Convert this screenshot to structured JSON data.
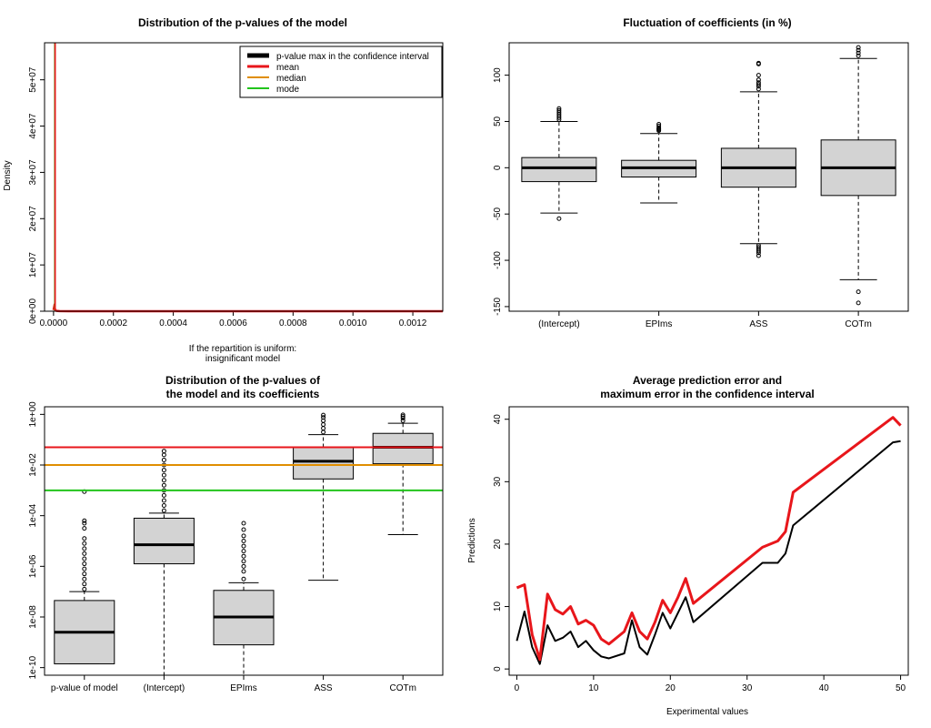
{
  "chart_data": [
    {
      "type": "density",
      "title": "Distribution of the p-values of the model",
      "xlabel": "If the repartition is uniform:",
      "xlabel2": "insignificant model",
      "ylabel": "Density",
      "xlim": [
        -3e-05,
        0.0013
      ],
      "ylim": [
        0,
        58000000
      ],
      "x_ticks": [
        0,
        0.0002,
        0.0004,
        0.0006,
        0.0008,
        0.001,
        0.0012
      ],
      "x_tick_labels": [
        "0.0000",
        "0.0002",
        "0.0004",
        "0.0006",
        "0.0008",
        "0.0010",
        "0.0012"
      ],
      "y_ticks": [
        0,
        10000000,
        20000000,
        30000000,
        40000000,
        50000000
      ],
      "y_tick_labels": [
        "0e+00",
        "1e+07",
        "2e+07",
        "3e+07",
        "4e+07",
        "5e+07"
      ],
      "density_curve": {
        "x": [
          0,
          2e-06,
          4e-06,
          6e-06,
          8e-06,
          1e-05,
          2e-05,
          5e-05,
          0.0001,
          0.0004,
          0.0008,
          0.0013
        ],
        "y": [
          250000,
          900000,
          600000,
          300000,
          150000,
          80000,
          30000,
          10000,
          5000,
          2000,
          1000,
          500
        ],
        "color": "#E8161B"
      },
      "vlines": [
        {
          "name": "p-value max in the confidence interval",
          "x": 4e-06,
          "color": "#000000"
        },
        {
          "name": "mode",
          "x": 4.5e-06,
          "color": "#22C41C"
        },
        {
          "name": "median",
          "x": 5e-06,
          "color": "#E08E00"
        },
        {
          "name": "mean",
          "x": 5.5e-06,
          "color": "#E8161B"
        }
      ],
      "legend": {
        "position": "top-right",
        "entries": [
          {
            "label": "p-value max in the confidence interval",
            "color": "#000000"
          },
          {
            "label": "mean",
            "color": "#E8161B"
          },
          {
            "label": "median",
            "color": "#E08E00"
          },
          {
            "label": "mode",
            "color": "#22C41C"
          }
        ]
      }
    },
    {
      "type": "boxplot",
      "title": "Fluctuation of coefficients (in %)",
      "categories": [
        "(Intercept)",
        "EPIms",
        "ASS",
        "COTm"
      ],
      "ylim": [
        -155,
        135
      ],
      "y_ticks": [
        -150,
        -100,
        -50,
        0,
        50,
        100
      ],
      "y_tick_labels": [
        "-150",
        "-100",
        "-50",
        "0",
        "50",
        "100"
      ],
      "boxes": [
        {
          "min": -49,
          "q1": -15,
          "median": 0,
          "q3": 11,
          "max": 50,
          "outliers": [
            -55,
            52,
            54,
            56,
            58,
            60,
            62,
            64
          ]
        },
        {
          "min": -38,
          "q1": -10,
          "median": 0,
          "q3": 8,
          "max": 37,
          "outliers": [
            40,
            41,
            42,
            43,
            45,
            47
          ]
        },
        {
          "min": -82,
          "q1": -21,
          "median": 0,
          "q3": 21,
          "max": 82,
          "outliers": [
            -95,
            -92,
            -90,
            -88,
            -86,
            -84,
            85,
            88,
            90,
            92,
            95,
            100,
            112,
            113
          ]
        },
        {
          "min": -121,
          "q1": -30,
          "median": 0,
          "q3": 30,
          "max": 118,
          "outliers": [
            -146,
            -134,
            121,
            124,
            127,
            130
          ]
        }
      ]
    },
    {
      "type": "boxplot",
      "title": "Distribution of the p-values of",
      "title2": "the model and its coefficients",
      "log_y": true,
      "categories": [
        "p-value of model",
        "(Intercept)",
        "EPIms",
        "ASS",
        "COTm"
      ],
      "ylim_log10": [
        -10.3,
        0.3
      ],
      "y_ticks_log10": [
        -10,
        -8,
        -6,
        -4,
        -2,
        0
      ],
      "y_tick_labels": [
        "1e-10",
        "1e-08",
        "1e-06",
        "1e-04",
        "1e-02",
        "1e+00"
      ],
      "boxes_log10": [
        {
          "min": -9.85,
          "q1": -9.85,
          "median": -8.6,
          "q3": -7.35,
          "max": -7.0,
          "outliers": [
            -6.9,
            -6.7,
            -6.5,
            -6.3,
            -6.1,
            -5.9,
            -5.7,
            -5.5,
            -5.3,
            -5.1,
            -4.9,
            -4.5,
            -4.3,
            -4.2,
            -3.05
          ]
        },
        {
          "min": -10.3,
          "q1": -5.9,
          "median": -5.15,
          "q3": -4.1,
          "max": -3.9,
          "outliers": [
            -3.8,
            -3.6,
            -3.4,
            -3.2,
            -3.0,
            -2.8,
            -2.6,
            -2.4,
            -2.2,
            -2.0,
            -1.8,
            -1.6,
            -1.45
          ]
        },
        {
          "min": -10.3,
          "q1": -9.1,
          "median": -8.0,
          "q3": -6.95,
          "max": -6.65,
          "outliers": [
            -6.5,
            -6.2,
            -6.0,
            -5.8,
            -5.6,
            -5.4,
            -5.2,
            -5.0,
            -4.8,
            -4.55,
            -4.3
          ]
        },
        {
          "min": -6.55,
          "q1": -2.55,
          "median": -1.85,
          "q3": -1.3,
          "max": -0.8,
          "outliers": [
            -0.7,
            -0.55,
            -0.4,
            -0.25,
            -0.12,
            -0.03
          ]
        },
        {
          "min": -4.75,
          "q1": -1.95,
          "median": -1.3,
          "q3": -0.75,
          "max": -0.35,
          "outliers": [
            -0.25,
            -0.15,
            -0.08,
            -0.02
          ]
        }
      ],
      "hlines_log10": [
        {
          "name": "mean",
          "y": -1.3,
          "color": "#E8161B"
        },
        {
          "name": "median",
          "y": -2.0,
          "color": "#E08E00"
        },
        {
          "name": "mode",
          "y": -3.0,
          "color": "#22C41C"
        }
      ]
    },
    {
      "type": "line",
      "title": "Average prediction error and",
      "title2": "maximum error in the confidence interval",
      "xlabel": "Experimental values",
      "ylabel": "Predictions",
      "xlim": [
        -1,
        51
      ],
      "ylim": [
        -1,
        42
      ],
      "x_ticks": [
        0,
        10,
        20,
        30,
        40,
        50
      ],
      "y_ticks": [
        0,
        10,
        20,
        30,
        40
      ],
      "series": [
        {
          "color": "#E8161B",
          "x": [
            0,
            1,
            2,
            3,
            4,
            5,
            6,
            7,
            8,
            9,
            10,
            11,
            12,
            14,
            15,
            16,
            17,
            18,
            19,
            20,
            21,
            22,
            23,
            32,
            34,
            35,
            36,
            49,
            50
          ],
          "y": [
            13,
            13.5,
            5.5,
            1.5,
            12,
            9.5,
            8.8,
            10,
            7.2,
            7.8,
            7,
            4.8,
            4,
            6,
            9,
            6,
            4.8,
            7.5,
            11,
            9,
            11.5,
            14.5,
            10.5,
            19.5,
            20.5,
            22,
            28.3,
            40.3,
            39
          ]
        },
        {
          "color": "#000000",
          "x": [
            0,
            1,
            2,
            3,
            4,
            5,
            6,
            7,
            8,
            9,
            10,
            11,
            12,
            14,
            15,
            16,
            17,
            18,
            19,
            20,
            21,
            22,
            23,
            32,
            34,
            35,
            36,
            49,
            50
          ],
          "y": [
            4.5,
            9.2,
            3.5,
            0.8,
            7,
            4.5,
            5,
            6,
            3.5,
            4.5,
            3,
            2,
            1.7,
            2.5,
            7.8,
            3.5,
            2.3,
            5.5,
            9,
            6.5,
            9,
            11.5,
            7.5,
            17,
            17,
            18.5,
            23,
            36.3,
            36.5
          ]
        }
      ]
    }
  ]
}
